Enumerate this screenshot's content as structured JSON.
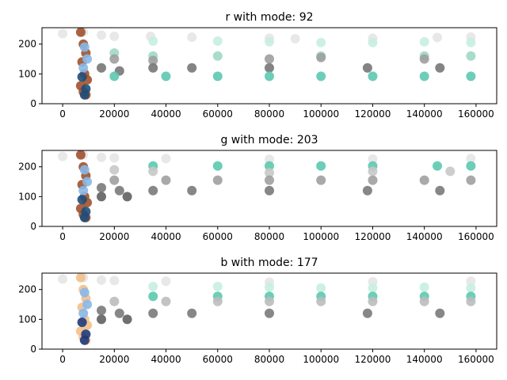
{
  "chart_data": [
    {
      "type": "scatter",
      "title": "r with mode: 92",
      "xlim": [
        -8000,
        168000
      ],
      "ylim": [
        0,
        255
      ],
      "x_ticks": [
        0,
        20000,
        40000,
        60000,
        80000,
        100000,
        120000,
        140000,
        160000
      ],
      "x_tick_labels": [
        "0",
        "20000",
        "40000",
        "60000",
        "80000",
        "100000",
        "120000",
        "140000",
        "160000"
      ],
      "y_ticks": [
        0,
        100,
        200
      ],
      "y_tick_labels": [
        "0",
        "100",
        "200"
      ],
      "grid": false,
      "series": [
        {
          "values": [
            [
              0,
              235
            ],
            [
              8000,
              240
            ],
            [
              15000,
              230
            ],
            [
              20000,
              226
            ],
            [
              34000,
              226
            ],
            [
              50000,
              223
            ],
            [
              80000,
              220
            ],
            [
              90000,
              218
            ],
            [
              120000,
              220
            ],
            [
              145000,
              222
            ],
            [
              158000,
              224
            ]
          ],
          "color": "#e6e6e6"
        },
        {
          "values": [
            [
              35000,
              210
            ],
            [
              60000,
              210
            ],
            [
              80000,
              208
            ],
            [
              100000,
              205
            ],
            [
              120000,
              205
            ],
            [
              140000,
              208
            ],
            [
              158000,
              205
            ]
          ],
          "color": "#c8eee2"
        },
        {
          "values": [
            [
              20000,
              170
            ],
            [
              35000,
              160
            ],
            [
              60000,
              160
            ],
            [
              100000,
              160
            ],
            [
              140000,
              160
            ],
            [
              158000,
              160
            ]
          ],
          "color": "#a0d8c8"
        },
        {
          "values": [
            [
              20000,
              150
            ],
            [
              35000,
              145
            ],
            [
              80000,
              150
            ],
            [
              100000,
              155
            ],
            [
              140000,
              150
            ]
          ],
          "color": "#9e9e9e"
        },
        {
          "values": [
            [
              15000,
              120
            ],
            [
              22000,
              110
            ],
            [
              35000,
              120
            ],
            [
              50000,
              120
            ],
            [
              80000,
              120
            ],
            [
              118000,
              120
            ],
            [
              146000,
              120
            ]
          ],
          "color": "#777777"
        },
        {
          "values": [
            [
              20000,
              92
            ],
            [
              40000,
              92
            ],
            [
              60000,
              92
            ],
            [
              80000,
              92
            ],
            [
              100000,
              92
            ],
            [
              120000,
              92
            ],
            [
              140000,
              92
            ],
            [
              158000,
              92
            ]
          ],
          "color": "#5cc9b0"
        },
        {
          "values": [
            [
              7000,
              240
            ],
            [
              8000,
              200
            ],
            [
              9000,
              170
            ],
            [
              7500,
              140
            ],
            [
              8500,
              100
            ],
            [
              9500,
              80
            ],
            [
              7000,
              60
            ],
            [
              8000,
              40
            ],
            [
              9000,
              30
            ]
          ],
          "color": "#a0522d"
        },
        {
          "values": [
            [
              8500,
              190
            ],
            [
              9500,
              150
            ],
            [
              8000,
              120
            ]
          ],
          "color": "#87b8e8"
        },
        {
          "values": [
            [
              7500,
              90
            ],
            [
              9000,
              50
            ],
            [
              8500,
              30
            ]
          ],
          "color": "#1f4e79"
        }
      ]
    },
    {
      "type": "scatter",
      "title": "g with mode: 203",
      "xlim": [
        -8000,
        168000
      ],
      "ylim": [
        0,
        255
      ],
      "x_ticks": [
        0,
        20000,
        40000,
        60000,
        80000,
        100000,
        120000,
        140000,
        160000
      ],
      "x_tick_labels": [
        "0",
        "20000",
        "40000",
        "60000",
        "80000",
        "100000",
        "120000",
        "140000",
        "160000"
      ],
      "y_ticks": [
        0,
        100,
        200
      ],
      "y_tick_labels": [
        "0",
        "100",
        "200"
      ],
      "grid": false,
      "series": [
        {
          "values": [
            [
              0,
              235
            ],
            [
              8000,
              240
            ],
            [
              15000,
              232
            ],
            [
              20000,
              230
            ],
            [
              40000,
              228
            ],
            [
              80000,
              225
            ],
            [
              120000,
              226
            ],
            [
              158000,
              228
            ]
          ],
          "color": "#e6e6e6"
        },
        {
          "values": [
            [
              35000,
              203
            ],
            [
              60000,
              203
            ],
            [
              80000,
              203
            ],
            [
              100000,
              203
            ],
            [
              120000,
              203
            ],
            [
              145000,
              203
            ],
            [
              158000,
              203
            ]
          ],
          "color": "#5cc9b0"
        },
        {
          "values": [
            [
              20000,
              190
            ],
            [
              35000,
              185
            ],
            [
              80000,
              180
            ],
            [
              120000,
              185
            ],
            [
              150000,
              185
            ]
          ],
          "color": "#c8c8c8"
        },
        {
          "values": [
            [
              20000,
              155
            ],
            [
              40000,
              155
            ],
            [
              60000,
              155
            ],
            [
              80000,
              155
            ],
            [
              100000,
              155
            ],
            [
              120000,
              155
            ],
            [
              140000,
              155
            ],
            [
              158000,
              155
            ]
          ],
          "color": "#a0a0a0"
        },
        {
          "values": [
            [
              15000,
              130
            ],
            [
              22000,
              120
            ],
            [
              35000,
              120
            ],
            [
              50000,
              120
            ],
            [
              80000,
              120
            ],
            [
              118000,
              120
            ],
            [
              146000,
              120
            ]
          ],
          "color": "#7a7a7a"
        },
        {
          "values": [
            [
              15000,
              100
            ],
            [
              25000,
              100
            ]
          ],
          "color": "#606060"
        },
        {
          "values": [
            [
              7000,
              240
            ],
            [
              8000,
              200
            ],
            [
              9000,
              170
            ],
            [
              7500,
              140
            ],
            [
              8500,
              100
            ],
            [
              9500,
              80
            ],
            [
              7000,
              60
            ],
            [
              8000,
              40
            ],
            [
              9000,
              30
            ]
          ],
          "color": "#a0522d"
        },
        {
          "values": [
            [
              8500,
              190
            ],
            [
              9500,
              150
            ],
            [
              8000,
              120
            ]
          ],
          "color": "#87b8e8"
        },
        {
          "values": [
            [
              7500,
              90
            ],
            [
              9000,
              50
            ],
            [
              8500,
              30
            ]
          ],
          "color": "#1f4e79"
        }
      ]
    },
    {
      "type": "scatter",
      "title": "b with mode: 177",
      "xlim": [
        -8000,
        168000
      ],
      "ylim": [
        0,
        255
      ],
      "x_ticks": [
        0,
        20000,
        40000,
        60000,
        80000,
        100000,
        120000,
        140000,
        160000
      ],
      "x_tick_labels": [
        "0",
        "20000",
        "40000",
        "60000",
        "80000",
        "100000",
        "120000",
        "140000",
        "160000"
      ],
      "y_ticks": [
        0,
        100,
        200
      ],
      "y_tick_labels": [
        "0",
        "100",
        "200"
      ],
      "grid": false,
      "series": [
        {
          "values": [
            [
              0,
              235
            ],
            [
              8000,
              240
            ],
            [
              15000,
              232
            ],
            [
              20000,
              230
            ],
            [
              40000,
              228
            ],
            [
              80000,
              225
            ],
            [
              120000,
              226
            ],
            [
              158000,
              228
            ]
          ],
          "color": "#e6e6e6"
        },
        {
          "values": [
            [
              35000,
              210
            ],
            [
              60000,
              210
            ],
            [
              80000,
              208
            ],
            [
              100000,
              205
            ],
            [
              120000,
              205
            ],
            [
              140000,
              208
            ],
            [
              158000,
              205
            ]
          ],
          "color": "#c8eee2"
        },
        {
          "values": [
            [
              35000,
              177
            ],
            [
              60000,
              177
            ],
            [
              80000,
              177
            ],
            [
              100000,
              177
            ],
            [
              120000,
              177
            ],
            [
              140000,
              177
            ],
            [
              158000,
              177
            ]
          ],
          "color": "#5cc9b0"
        },
        {
          "values": [
            [
              20000,
              160
            ],
            [
              40000,
              160
            ],
            [
              60000,
              160
            ],
            [
              80000,
              160
            ],
            [
              100000,
              160
            ],
            [
              120000,
              160
            ],
            [
              140000,
              160
            ],
            [
              158000,
              160
            ]
          ],
          "color": "#bdbdbd"
        },
        {
          "values": [
            [
              15000,
              130
            ],
            [
              22000,
              120
            ],
            [
              35000,
              120
            ],
            [
              50000,
              120
            ],
            [
              80000,
              120
            ],
            [
              118000,
              120
            ],
            [
              146000,
              120
            ]
          ],
          "color": "#7a7a7a"
        },
        {
          "values": [
            [
              15000,
              100
            ],
            [
              25000,
              100
            ]
          ],
          "color": "#606060"
        },
        {
          "values": [
            [
              7000,
              240
            ],
            [
              8000,
              200
            ],
            [
              9000,
              170
            ],
            [
              7500,
              140
            ],
            [
              8500,
              100
            ],
            [
              9500,
              80
            ],
            [
              7000,
              60
            ],
            [
              8000,
              40
            ],
            [
              9000,
              30
            ]
          ],
          "color": "#f2c08a"
        },
        {
          "values": [
            [
              8500,
              190
            ],
            [
              9500,
              150
            ],
            [
              8000,
              120
            ]
          ],
          "color": "#87b8e8"
        },
        {
          "values": [
            [
              7500,
              90
            ],
            [
              9000,
              50
            ],
            [
              8500,
              30
            ]
          ],
          "color": "#1f3a7a"
        }
      ]
    }
  ]
}
